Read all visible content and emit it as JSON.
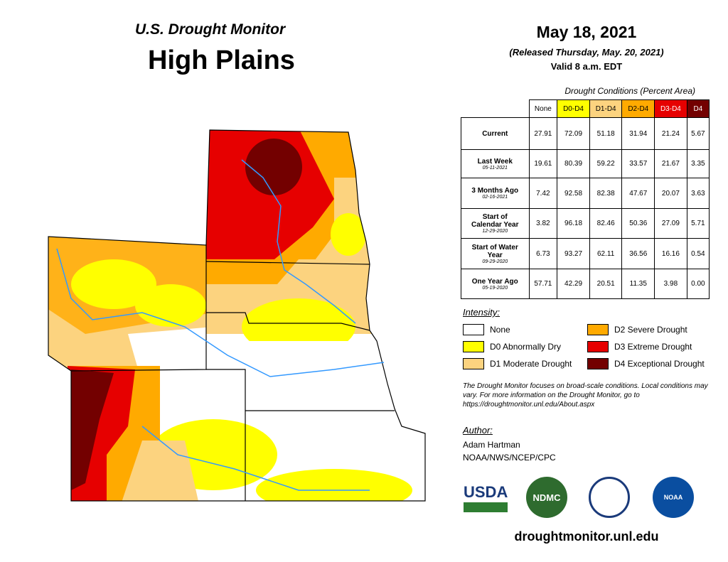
{
  "header": {
    "title": "U.S. Drought Monitor",
    "region": "High Plains",
    "date": "May 18, 2021",
    "released": "(Released Thursday, May. 20, 2021)",
    "valid": "Valid 8 a.m. EDT"
  },
  "table": {
    "caption": "Drought Conditions (Percent Area)",
    "columns": [
      "None",
      "D0-D4",
      "D1-D4",
      "D2-D4",
      "D3-D4",
      "D4"
    ],
    "rows": [
      {
        "label": "Current",
        "values": [
          "27.91",
          "72.09",
          "51.18",
          "31.94",
          "21.24",
          "5.67"
        ]
      },
      {
        "label": "Last Week",
        "sublabel": "05-11-2021",
        "values": [
          "19.61",
          "80.39",
          "59.22",
          "33.57",
          "21.67",
          "3.35"
        ]
      },
      {
        "label": "3 Months Ago",
        "sublabel": "02-16-2021",
        "values": [
          "7.42",
          "92.58",
          "82.38",
          "47.67",
          "20.07",
          "3.63"
        ]
      },
      {
        "label": "Start of Calendar Year",
        "sublabel": "12-29-2020",
        "values": [
          "3.82",
          "96.18",
          "82.46",
          "50.36",
          "27.09",
          "5.71"
        ]
      },
      {
        "label": "Start of Water Year",
        "sublabel": "09-29-2020",
        "values": [
          "6.73",
          "93.27",
          "62.11",
          "36.56",
          "16.16",
          "0.54"
        ]
      },
      {
        "label": "One Year Ago",
        "sublabel": "05-19-2020",
        "values": [
          "57.71",
          "42.29",
          "20.51",
          "11.35",
          "3.98",
          "0.00"
        ]
      }
    ]
  },
  "legend": {
    "title": "Intensity:",
    "items": [
      "None",
      "D0 Abnormally Dry",
      "D1 Moderate Drought",
      "D2 Severe Drought",
      "D3 Extreme Drought",
      "D4 Exceptional Drought"
    ]
  },
  "note": "The Drought Monitor focuses on broad-scale conditions. Local conditions may vary. For more information on the Drought Monitor, go to https://droughtmonitor.unl.edu/About.aspx",
  "author": {
    "title": "Author:",
    "name": "Adam Hartman",
    "org": "NOAA/NWS/NCEP/CPC"
  },
  "logos": {
    "usda": "USDA",
    "ndmc": "NDMC",
    "noaa": "NOAA"
  },
  "url": "droughtmonitor.unl.edu"
}
